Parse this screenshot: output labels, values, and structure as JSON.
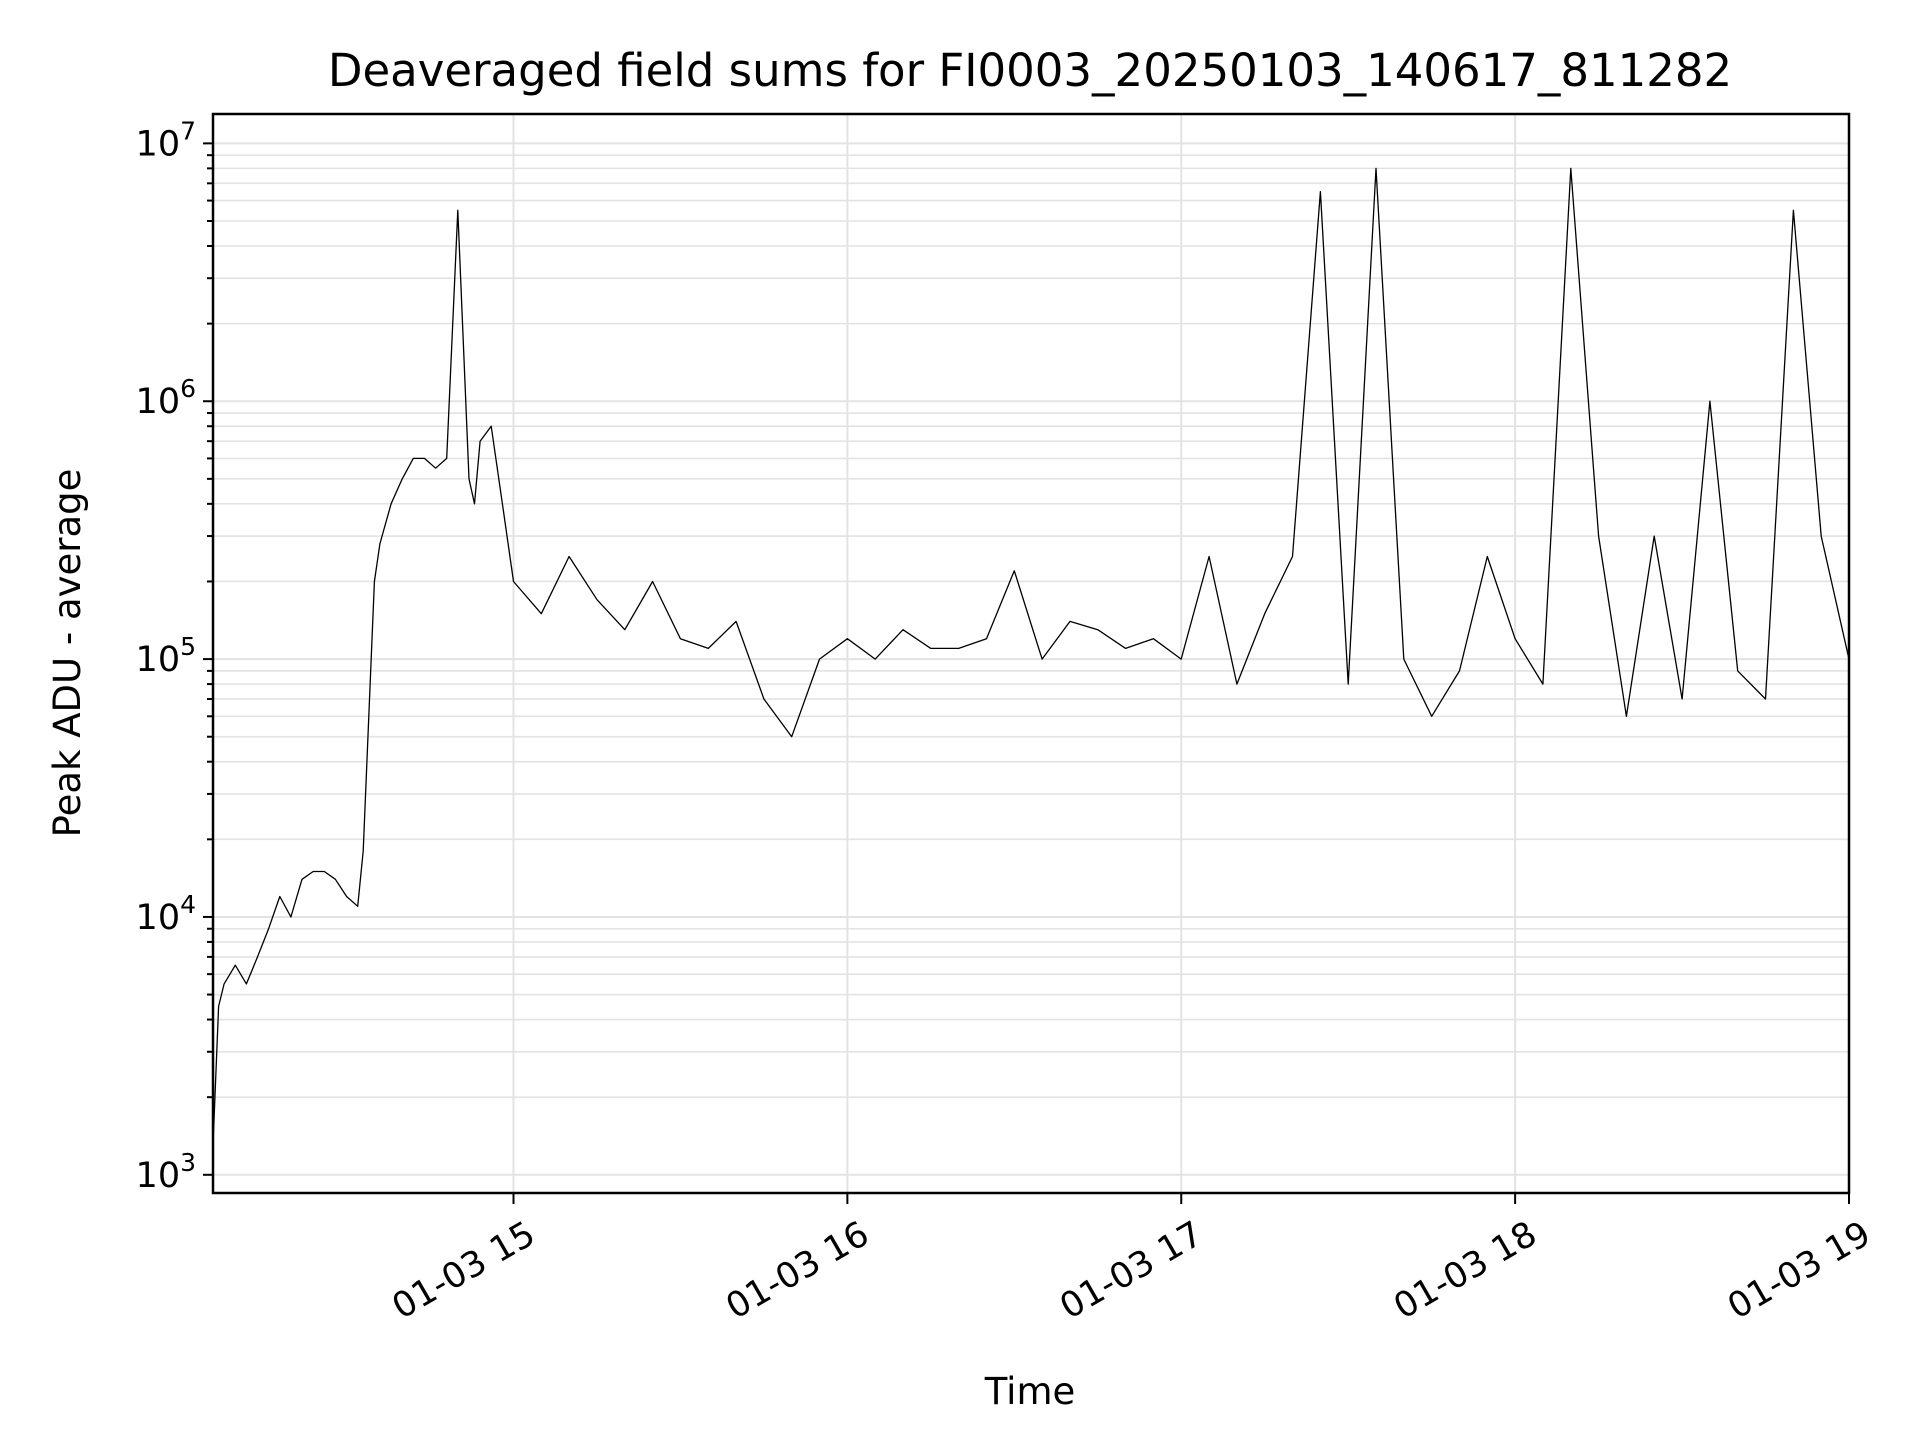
{
  "chart_data": {
    "type": "line",
    "title": "Deaveraged field sums for FI0003_20250103_140617_811282",
    "xlabel": "Time",
    "ylabel": "Peak ADU - average",
    "yscale": "log",
    "ylim": [
      850,
      13000000
    ],
    "xlim": [
      "01-03 14:06",
      "01-03 19:00"
    ],
    "x_tick_labels": [
      "01-03 15",
      "01-03 16",
      "01-03 17",
      "01-03 18",
      "01-03 19"
    ],
    "y_tick_labels": [
      {
        "base": "10",
        "exp": "3"
      },
      {
        "base": "10",
        "exp": "4"
      },
      {
        "base": "10",
        "exp": "5"
      },
      {
        "base": "10",
        "exp": "6"
      },
      {
        "base": "10",
        "exp": "7"
      }
    ],
    "grid": true,
    "line_color": "#000000",
    "series": [
      {
        "x": [
          "01-03 14:06",
          "01-03 14:07",
          "01-03 14:08",
          "01-03 14:10",
          "01-03 14:12",
          "01-03 14:14",
          "01-03 14:16",
          "01-03 14:18",
          "01-03 14:20",
          "01-03 14:22",
          "01-03 14:24",
          "01-03 14:26",
          "01-03 14:28",
          "01-03 14:30",
          "01-03 14:32",
          "01-03 14:33",
          "01-03 14:34",
          "01-03 14:35",
          "01-03 14:36",
          "01-03 14:38",
          "01-03 14:40",
          "01-03 14:42",
          "01-03 14:44",
          "01-03 14:46",
          "01-03 14:48",
          "01-03 14:50",
          "01-03 14:52",
          "01-03 14:53",
          "01-03 14:54",
          "01-03 14:56",
          "01-03 14:58",
          "01-03 15:00",
          "01-03 15:05",
          "01-03 15:10",
          "01-03 15:15",
          "01-03 15:20",
          "01-03 15:25",
          "01-03 15:30",
          "01-03 15:35",
          "01-03 15:40",
          "01-03 15:45",
          "01-03 15:50",
          "01-03 15:55",
          "01-03 16:00",
          "01-03 16:05",
          "01-03 16:10",
          "01-03 16:15",
          "01-03 16:20",
          "01-03 16:25",
          "01-03 16:30",
          "01-03 16:35",
          "01-03 16:40",
          "01-03 16:45",
          "01-03 16:50",
          "01-03 16:55",
          "01-03 17:00",
          "01-03 17:05",
          "01-03 17:10",
          "01-03 17:15",
          "01-03 17:20",
          "01-03 17:25",
          "01-03 17:30",
          "01-03 17:35",
          "01-03 17:40",
          "01-03 17:45",
          "01-03 17:50",
          "01-03 17:55",
          "01-03 18:00",
          "01-03 18:05",
          "01-03 18:10",
          "01-03 18:15",
          "01-03 18:20",
          "01-03 18:25",
          "01-03 18:30",
          "01-03 18:35",
          "01-03 18:40",
          "01-03 18:45",
          "01-03 18:50",
          "01-03 18:55",
          "01-03 19:00"
        ],
        "y": [
          1300,
          4500,
          5500,
          6500,
          5500,
          7000,
          9000,
          12000,
          10000,
          14000,
          15000,
          15000,
          14000,
          12000,
          11000,
          18000,
          60000,
          200000,
          280000,
          400000,
          500000,
          600000,
          600000,
          550000,
          600000,
          5500000,
          500000,
          400000,
          700000,
          800000,
          400000,
          200000,
          150000,
          250000,
          170000,
          130000,
          200000,
          120000,
          110000,
          140000,
          70000,
          50000,
          100000,
          120000,
          100000,
          130000,
          110000,
          110000,
          120000,
          220000,
          100000,
          140000,
          130000,
          110000,
          120000,
          100000,
          250000,
          80000,
          150000,
          250000,
          6500000,
          80000,
          8000000,
          100000,
          60000,
          90000,
          250000,
          120000,
          80000,
          8000000,
          300000,
          60000,
          300000,
          70000,
          1000000,
          90000,
          70000,
          5500000,
          300000,
          100000
        ]
      }
    ]
  }
}
